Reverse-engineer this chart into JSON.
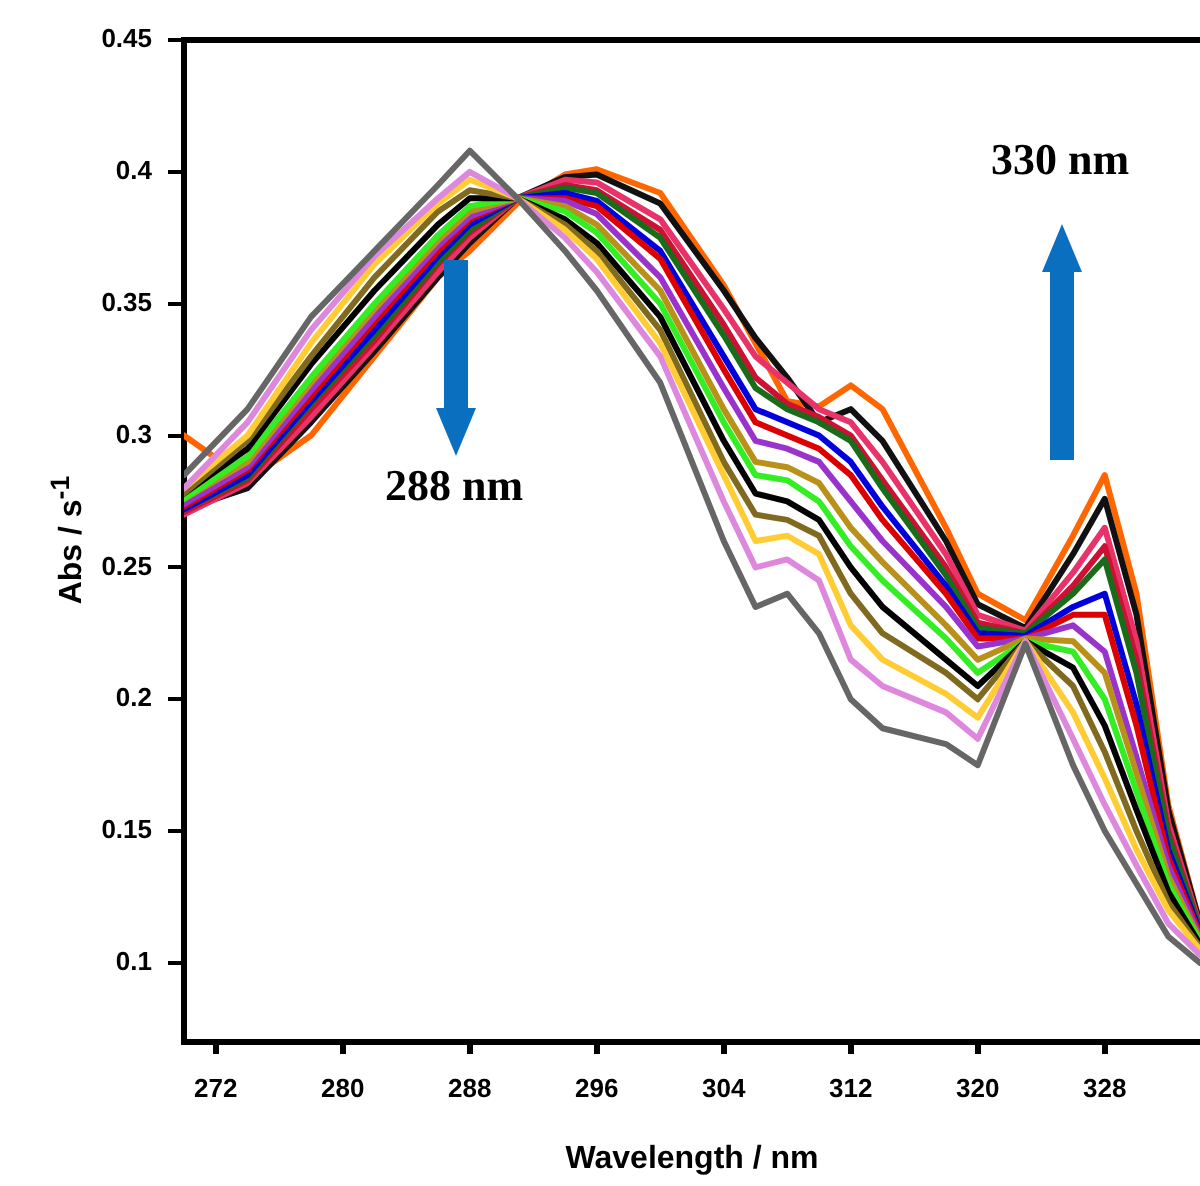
{
  "chart_data": {
    "type": "line",
    "xlabel": "Wavelength / nm",
    "ylabel": "Abs / s$^{-1}$",
    "xlim": [
      270,
      334
    ],
    "ylim": [
      0.07,
      0.45
    ],
    "xticks": [
      272,
      280,
      288,
      296,
      304,
      312,
      320,
      328
    ],
    "yticks": [
      0.1,
      0.15,
      0.2,
      0.25,
      0.3,
      0.35,
      0.4,
      0.45
    ],
    "grid": false,
    "legend": false,
    "marker": "none",
    "line_style": "solid",
    "annotations": [
      "288 nm",
      "330 nm"
    ],
    "x": [
      270,
      274,
      278,
      282,
      286,
      288,
      291,
      294,
      296,
      300,
      304,
      306,
      308,
      310,
      312,
      314,
      318,
      320,
      323,
      326,
      328,
      330,
      332,
      334
    ],
    "series": [
      {
        "color": "#666666",
        "values": [
          0.285,
          0.31,
          0.345,
          0.37,
          0.395,
          0.408,
          0.39,
          0.37,
          0.355,
          0.32,
          0.26,
          0.235,
          0.24,
          0.225,
          0.2,
          0.189,
          0.183,
          0.175,
          0.221,
          0.175,
          0.15,
          0.13,
          0.11,
          0.1
        ]
      },
      {
        "color": "#dd88dd",
        "values": [
          0.28,
          0.305,
          0.34,
          0.368,
          0.39,
          0.4,
          0.39,
          0.375,
          0.362,
          0.33,
          0.275,
          0.25,
          0.253,
          0.245,
          0.215,
          0.205,
          0.195,
          0.185,
          0.222,
          0.185,
          0.16,
          0.137,
          0.115,
          0.103
        ]
      },
      {
        "color": "#ffcc33",
        "values": [
          0.28,
          0.3,
          0.335,
          0.365,
          0.388,
          0.397,
          0.39,
          0.378,
          0.367,
          0.335,
          0.285,
          0.26,
          0.262,
          0.255,
          0.228,
          0.215,
          0.202,
          0.193,
          0.222,
          0.195,
          0.17,
          0.143,
          0.12,
          0.105
        ]
      },
      {
        "color": "#806a20",
        "values": [
          0.278,
          0.298,
          0.33,
          0.36,
          0.385,
          0.393,
          0.39,
          0.38,
          0.37,
          0.34,
          0.29,
          0.27,
          0.268,
          0.262,
          0.24,
          0.225,
          0.21,
          0.2,
          0.222,
          0.205,
          0.18,
          0.15,
          0.123,
          0.106
        ]
      },
      {
        "color": "#000000",
        "values": [
          0.278,
          0.295,
          0.327,
          0.355,
          0.38,
          0.39,
          0.39,
          0.382,
          0.373,
          0.345,
          0.298,
          0.278,
          0.275,
          0.268,
          0.25,
          0.235,
          0.215,
          0.205,
          0.222,
          0.212,
          0.19,
          0.158,
          0.127,
          0.107
        ]
      },
      {
        "color": "#33ee22",
        "values": [
          0.276,
          0.292,
          0.322,
          0.35,
          0.376,
          0.387,
          0.39,
          0.385,
          0.377,
          0.35,
          0.305,
          0.285,
          0.283,
          0.275,
          0.258,
          0.245,
          0.223,
          0.21,
          0.222,
          0.218,
          0.2,
          0.165,
          0.13,
          0.108
        ]
      },
      {
        "color": "#b8901a",
        "values": [
          0.276,
          0.29,
          0.32,
          0.348,
          0.374,
          0.385,
          0.39,
          0.387,
          0.38,
          0.355,
          0.31,
          0.29,
          0.288,
          0.282,
          0.265,
          0.252,
          0.228,
          0.215,
          0.223,
          0.222,
          0.21,
          0.172,
          0.133,
          0.109
        ]
      },
      {
        "color": "#9933cc",
        "values": [
          0.274,
          0.288,
          0.317,
          0.345,
          0.372,
          0.383,
          0.39,
          0.389,
          0.384,
          0.36,
          0.318,
          0.298,
          0.295,
          0.29,
          0.275,
          0.26,
          0.235,
          0.22,
          0.223,
          0.228,
          0.218,
          0.178,
          0.137,
          0.11
        ]
      },
      {
        "color": "#dd0000",
        "values": [
          0.273,
          0.287,
          0.315,
          0.343,
          0.37,
          0.382,
          0.39,
          0.39,
          0.387,
          0.367,
          0.325,
          0.305,
          0.3,
          0.295,
          0.285,
          0.268,
          0.24,
          0.223,
          0.223,
          0.232,
          0.232,
          0.19,
          0.14,
          0.111
        ]
      },
      {
        "color": "#0000dd",
        "values": [
          0.272,
          0.285,
          0.313,
          0.34,
          0.368,
          0.38,
          0.39,
          0.392,
          0.389,
          0.37,
          0.33,
          0.31,
          0.305,
          0.3,
          0.29,
          0.273,
          0.243,
          0.225,
          0.224,
          0.235,
          0.24,
          0.198,
          0.143,
          0.112
        ]
      },
      {
        "color": "#1a6b1a",
        "values": [
          0.272,
          0.284,
          0.312,
          0.338,
          0.366,
          0.378,
          0.39,
          0.394,
          0.392,
          0.375,
          0.338,
          0.318,
          0.31,
          0.305,
          0.298,
          0.28,
          0.247,
          0.227,
          0.225,
          0.24,
          0.253,
          0.21,
          0.148,
          0.113
        ]
      },
      {
        "color": "#cc1133",
        "values": [
          0.271,
          0.283,
          0.31,
          0.336,
          0.365,
          0.377,
          0.39,
          0.395,
          0.393,
          0.378,
          0.342,
          0.322,
          0.312,
          0.307,
          0.3,
          0.283,
          0.25,
          0.229,
          0.225,
          0.243,
          0.258,
          0.215,
          0.15,
          0.113
        ]
      },
      {
        "color": "#e8336a",
        "values": [
          0.27,
          0.282,
          0.307,
          0.334,
          0.362,
          0.375,
          0.39,
          0.397,
          0.396,
          0.382,
          0.348,
          0.33,
          0.32,
          0.31,
          0.305,
          0.29,
          0.255,
          0.232,
          0.226,
          0.248,
          0.265,
          0.222,
          0.153,
          0.114
        ]
      },
      {
        "color": "#111111",
        "values": [
          0.272,
          0.28,
          0.305,
          0.332,
          0.36,
          0.373,
          0.39,
          0.398,
          0.399,
          0.388,
          0.355,
          0.337,
          0.322,
          0.305,
          0.31,
          0.298,
          0.26,
          0.236,
          0.227,
          0.255,
          0.276,
          0.232,
          0.158,
          0.115
        ]
      },
      {
        "color": "#ff6600",
        "values": [
          0.3,
          0.283,
          0.3,
          0.33,
          0.36,
          0.37,
          0.388,
          0.399,
          0.401,
          0.392,
          0.357,
          0.335,
          0.313,
          0.311,
          0.319,
          0.31,
          0.265,
          0.24,
          0.23,
          0.262,
          0.285,
          0.24,
          0.16,
          0.115
        ]
      }
    ]
  }
}
